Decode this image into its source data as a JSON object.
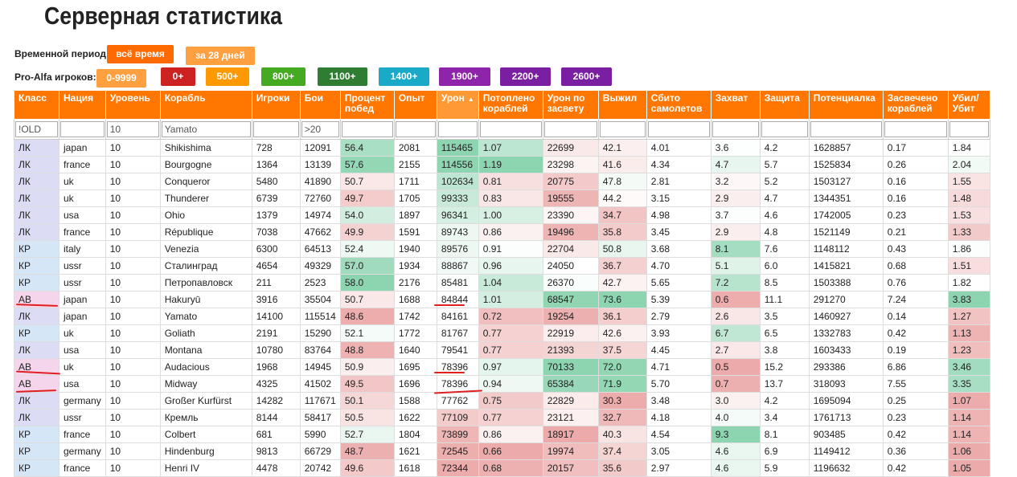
{
  "title": "Серверная статистика",
  "period": {
    "label": "Временной период:",
    "buttons": [
      {
        "label": "всё время",
        "color": "#ff6a00"
      },
      {
        "label": "за 28 дней",
        "color": "#ffa040"
      }
    ]
  },
  "proalfa": {
    "label": "Pro-Alfa игроков:",
    "buttons": [
      {
        "label": "0-9999",
        "color": "#ffa040"
      },
      {
        "label": "0+",
        "color": "#cc2222"
      },
      {
        "label": "500+",
        "color": "#ff9900"
      },
      {
        "label": "800+",
        "color": "#44aa22"
      },
      {
        "label": "1100+",
        "color": "#2e7d32"
      },
      {
        "label": "1400+",
        "color": "#1aa9c7"
      },
      {
        "label": "1900+",
        "color": "#8e24aa"
      },
      {
        "label": "2200+",
        "color": "#7b1fa2"
      },
      {
        "label": "2600+",
        "color": "#7b1fa2"
      }
    ]
  },
  "table": {
    "columns": [
      "Класс",
      "Нация",
      "Уровень",
      "Корабль",
      "Игроки",
      "Бои",
      "Процент побед",
      "Опыт",
      "Урон",
      "Потоплено кораблей",
      "Урон по засвету",
      "Выжил",
      "Сбито самолетов",
      "Захват",
      "Защита",
      "Потенциалка",
      "Засвечено кораблей",
      "Убил/ Убит"
    ],
    "sort_arrow": "▲",
    "filters": [
      "!OLD",
      "",
      "10",
      "Yamato",
      "",
      ">20",
      "",
      "",
      "",
      "",
      "",
      "",
      "",
      "",
      "",
      "",
      "",
      ""
    ],
    "filter_placeholders": [
      "",
      "",
      "",
      "Yamato",
      "",
      "",
      "",
      "",
      "",
      "",
      "",
      "",
      "",
      "",
      "",
      "",
      "",
      ""
    ],
    "rows": [
      [
        "ЛК",
        "japan",
        "10",
        "Shikishima",
        "728",
        "12091",
        "56.4",
        "2081",
        "115465",
        "1.07",
        "22699",
        "42.1",
        "4.01",
        "3.6",
        "4.2",
        "1628857",
        "0.17",
        "1.84"
      ],
      [
        "ЛК",
        "france",
        "10",
        "Bourgogne",
        "1364",
        "13139",
        "57.6",
        "2155",
        "114556",
        "1.19",
        "23298",
        "41.6",
        "4.34",
        "4.7",
        "5.7",
        "1525834",
        "0.26",
        "2.04"
      ],
      [
        "ЛК",
        "uk",
        "10",
        "Conqueror",
        "5480",
        "41890",
        "50.7",
        "1711",
        "102634",
        "0.81",
        "20775",
        "47.8",
        "2.81",
        "3.2",
        "5.2",
        "1503127",
        "0.16",
        "1.55"
      ],
      [
        "ЛК",
        "uk",
        "10",
        "Thunderer",
        "6739",
        "72760",
        "49.7",
        "1705",
        "99333",
        "0.83",
        "19555",
        "44.2",
        "3.15",
        "2.9",
        "4.7",
        "1344351",
        "0.16",
        "1.48"
      ],
      [
        "ЛК",
        "usa",
        "10",
        "Ohio",
        "1379",
        "14974",
        "54.0",
        "1897",
        "96341",
        "1.00",
        "23390",
        "34.7",
        "4.98",
        "3.7",
        "4.6",
        "1742005",
        "0.23",
        "1.53"
      ],
      [
        "ЛК",
        "france",
        "10",
        "République",
        "7038",
        "47662",
        "49.9",
        "1591",
        "89743",
        "0.86",
        "19496",
        "35.8",
        "3.45",
        "2.9",
        "4.8",
        "1521149",
        "0.21",
        "1.33"
      ],
      [
        "КР",
        "italy",
        "10",
        "Venezia",
        "6300",
        "64513",
        "52.4",
        "1940",
        "89576",
        "0.91",
        "22704",
        "50.8",
        "3.68",
        "8.1",
        "7.6",
        "1148112",
        "0.43",
        "1.86"
      ],
      [
        "КР",
        "ussr",
        "10",
        "Сталинград",
        "4654",
        "49329",
        "57.0",
        "1934",
        "88867",
        "0.96",
        "24050",
        "36.7",
        "4.70",
        "5.1",
        "6.0",
        "1415821",
        "0.68",
        "1.51"
      ],
      [
        "КР",
        "ussr",
        "10",
        "Петропавловск",
        "211",
        "2523",
        "58.0",
        "2176",
        "85481",
        "1.04",
        "26370",
        "42.7",
        "5.65",
        "7.2",
        "8.5",
        "1503388",
        "0.76",
        "1.82"
      ],
      [
        "АВ",
        "japan",
        "10",
        "Hakuryū",
        "3916",
        "35504",
        "50.7",
        "1688",
        "84844",
        "1.01",
        "68547",
        "73.6",
        "5.39",
        "0.6",
        "11.1",
        "291270",
        "7.24",
        "3.83"
      ],
      [
        "ЛК",
        "japan",
        "10",
        "Yamato",
        "14100",
        "115514",
        "48.6",
        "1742",
        "84161",
        "0.72",
        "19254",
        "36.1",
        "2.79",
        "2.6",
        "3.5",
        "1460927",
        "0.14",
        "1.27"
      ],
      [
        "КР",
        "uk",
        "10",
        "Goliath",
        "2191",
        "15290",
        "52.1",
        "1772",
        "81767",
        "0.77",
        "22919",
        "42.6",
        "3.93",
        "6.7",
        "6.5",
        "1332783",
        "0.42",
        "1.13"
      ],
      [
        "ЛК",
        "usa",
        "10",
        "Montana",
        "10780",
        "83764",
        "48.8",
        "1640",
        "79541",
        "0.77",
        "21393",
        "37.5",
        "4.45",
        "2.7",
        "3.8",
        "1603433",
        "0.19",
        "1.23"
      ],
      [
        "АВ",
        "uk",
        "10",
        "Audacious",
        "1968",
        "14945",
        "50.9",
        "1695",
        "78396",
        "0.97",
        "70133",
        "72.0",
        "4.71",
        "0.5",
        "15.2",
        "293386",
        "6.86",
        "3.46"
      ],
      [
        "АВ",
        "usa",
        "10",
        "Midway",
        "4325",
        "41502",
        "49.5",
        "1696",
        "78396",
        "0.94",
        "65384",
        "71.9",
        "5.70",
        "0.7",
        "13.7",
        "318093",
        "7.55",
        "3.35"
      ],
      [
        "ЛК",
        "germany",
        "10",
        "Großer Kurfürst",
        "14282",
        "117671",
        "50.1",
        "1588",
        "77762",
        "0.75",
        "22829",
        "30.3",
        "3.48",
        "3.0",
        "4.2",
        "1695094",
        "0.25",
        "1.07"
      ],
      [
        "ЛК",
        "ussr",
        "10",
        "Кремль",
        "8144",
        "58417",
        "50.5",
        "1622",
        "77109",
        "0.77",
        "23121",
        "32.7",
        "4.18",
        "4.0",
        "3.4",
        "1761713",
        "0.23",
        "1.14"
      ],
      [
        "КР",
        "france",
        "10",
        "Colbert",
        "681",
        "5990",
        "52.7",
        "1804",
        "73899",
        "0.86",
        "18917",
        "40.3",
        "4.54",
        "9.3",
        "8.1",
        "903485",
        "0.42",
        "1.14"
      ],
      [
        "КР",
        "germany",
        "10",
        "Hindenburg",
        "9813",
        "66729",
        "48.7",
        "1621",
        "72545",
        "0.66",
        "19974",
        "37.4",
        "3.05",
        "4.6",
        "6.9",
        "1149412",
        "0.36",
        "1.06"
      ],
      [
        "КР",
        "france",
        "10",
        "Henri IV",
        "4478",
        "20742",
        "49.6",
        "1618",
        "72344",
        "0.68",
        "20157",
        "35.6",
        "2.97",
        "4.6",
        "5.9",
        "1196632",
        "0.42",
        "1.05"
      ]
    ]
  }
}
